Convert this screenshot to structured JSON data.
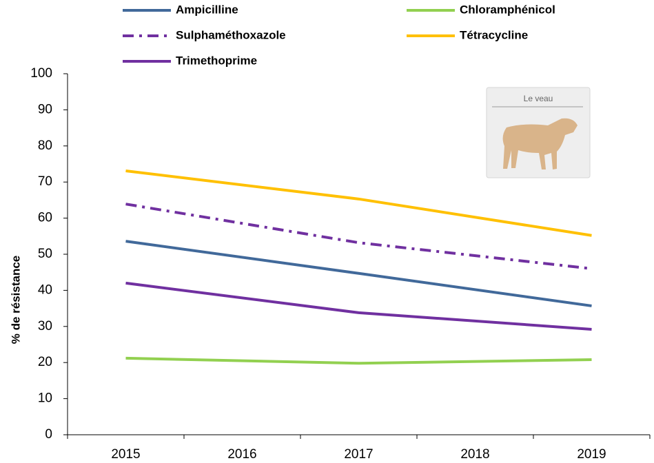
{
  "chart_data": {
    "type": "line",
    "y_label": "% de résistance",
    "image_caption": "Le veau",
    "x": [
      2015,
      2017,
      2019
    ],
    "xlim": [
      2014.5,
      2019.5
    ],
    "xticks": [
      2015,
      2016,
      2017,
      2018,
      2019
    ],
    "ylim": [
      0,
      100
    ],
    "yticks": [
      0,
      10,
      20,
      30,
      40,
      50,
      60,
      70,
      80,
      90,
      100
    ],
    "series": [
      {
        "name": "Ampicilline",
        "color": "#41699a",
        "dash": "solid",
        "values": [
          53.6,
          44.7,
          35.7
        ]
      },
      {
        "name": "Chloramphénicol",
        "color": "#92d050",
        "dash": "solid",
        "values": [
          21.2,
          19.8,
          20.8
        ]
      },
      {
        "name": "Sulphaméthoxazole",
        "color": "#7030a0",
        "dash": "dashdot",
        "values": [
          63.9,
          53.2,
          46.0
        ]
      },
      {
        "name": "Tétracycline",
        "color": "#ffc000",
        "dash": "solid",
        "values": [
          73.1,
          65.3,
          55.2
        ]
      },
      {
        "name": "Trimethoprime",
        "color": "#7030a0",
        "dash": "solid",
        "values": [
          42.0,
          33.8,
          29.2
        ]
      }
    ]
  }
}
